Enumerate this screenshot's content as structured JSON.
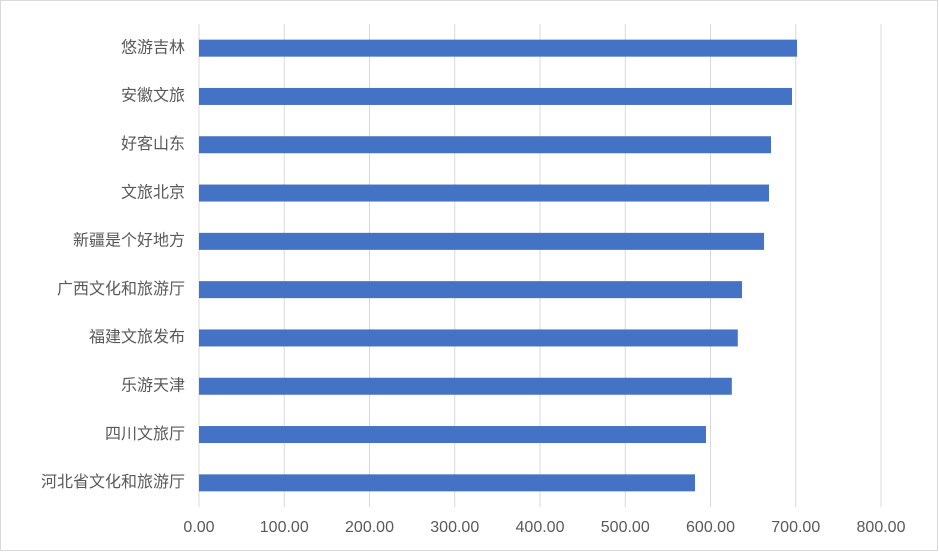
{
  "chart_data": {
    "type": "bar",
    "orientation": "horizontal",
    "categories": [
      "悠游吉林",
      "安徽文旅",
      "好客山东",
      "文旅北京",
      "新疆是个好地方",
      "广西文化和旅游厅",
      "福建文旅发布",
      "乐游天津",
      "四川文旅厅",
      "河北省文化和旅游厅"
    ],
    "values": [
      701.5,
      695.6,
      671,
      668.6,
      662.8,
      637,
      632,
      625,
      594.7,
      581.8
    ],
    "color": "#4472c4",
    "xlim": [
      0,
      800
    ],
    "xticks": [
      {
        "value": 0,
        "label": "0.00"
      },
      {
        "value": 100,
        "label": "100.00"
      },
      {
        "value": 200,
        "label": "200.00"
      },
      {
        "value": 300,
        "label": "300.00"
      },
      {
        "value": 400,
        "label": "400.00"
      },
      {
        "value": 500,
        "label": "500.00"
      },
      {
        "value": 600,
        "label": "600.00"
      },
      {
        "value": 700,
        "label": "700.00"
      },
      {
        "value": 800,
        "label": "800.00"
      }
    ],
    "grid": true
  }
}
